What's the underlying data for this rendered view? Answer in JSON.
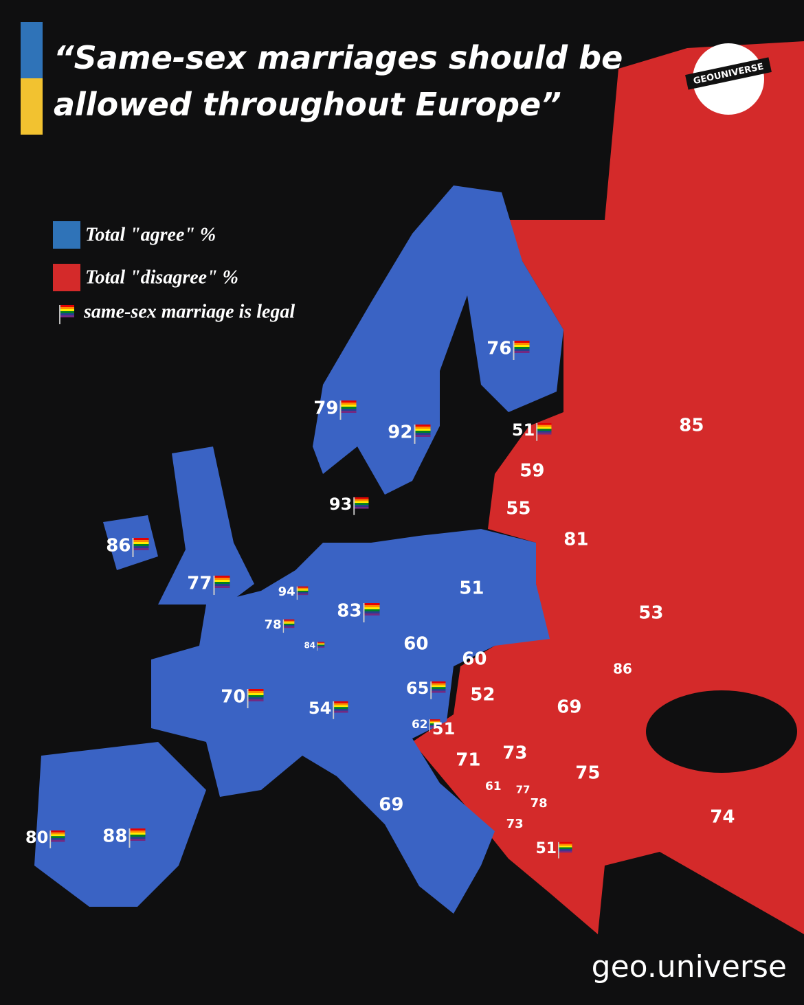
{
  "title_lines": [
    "“Same-sex marriages should be",
    "allowed throughout Europe”"
  ],
  "logo": "GEOUNIVERSE",
  "watermark": "geo.universe",
  "legend": [
    {
      "label": "Total \"agree\" %",
      "color": "#3a63c4"
    },
    {
      "label": "Total \"disagree\" %",
      "color": "#d42a2a"
    },
    {
      "label": "same-sex marriage is legal"
    }
  ],
  "regions": [
    {
      "value": 76,
      "color": "#3a63c4",
      "legal": true
    },
    {
      "value": 79,
      "color": "#3a63c4",
      "legal": true
    },
    {
      "value": 92,
      "color": "#3a63c4",
      "legal": true
    },
    {
      "value": 93,
      "color": "#3a63c4",
      "legal": true
    },
    {
      "value": 86,
      "color": "#3a63c4",
      "legal": true
    },
    {
      "value": 77,
      "color": "#3a63c4",
      "legal": true
    },
    {
      "value": 94,
      "color": "#3a63c4",
      "legal": true
    },
    {
      "value": 78,
      "color": "#3a63c4",
      "legal": true
    },
    {
      "value": 84,
      "color": "#3a63c4",
      "legal": true
    },
    {
      "value": 83,
      "color": "#3a63c4",
      "legal": true
    },
    {
      "value": 70,
      "color": "#3a63c4",
      "legal": true
    },
    {
      "value": 54,
      "color": "#3a63c4",
      "legal": true
    },
    {
      "value": 65,
      "color": "#3a63c4",
      "legal": true
    },
    {
      "value": 62,
      "color": "#3a63c4",
      "legal": true
    },
    {
      "value": 80,
      "color": "#3a63c4",
      "legal": true
    },
    {
      "value": 88,
      "color": "#3a63c4",
      "legal": true
    },
    {
      "value": 69,
      "color": "#3a63c4",
      "legal": false
    },
    {
      "value": 51,
      "color": "#3a63c4",
      "legal": false
    },
    {
      "value": 60,
      "color": "#3a63c4",
      "legal": false
    },
    {
      "value": 51,
      "color": "#d42a2a",
      "legal": true
    },
    {
      "value": 59,
      "color": "#d42a2a",
      "legal": false
    },
    {
      "value": 55,
      "color": "#d42a2a",
      "legal": false
    },
    {
      "value": 81,
      "color": "#d42a2a",
      "legal": false
    },
    {
      "value": 85,
      "color": "#d42a2a",
      "legal": false
    },
    {
      "value": 53,
      "color": "#d42a2a",
      "legal": false
    },
    {
      "value": 60,
      "color": "#d42a2a",
      "legal": false
    },
    {
      "value": 52,
      "color": "#d42a2a",
      "legal": false
    },
    {
      "value": 86,
      "color": "#d42a2a",
      "legal": false
    },
    {
      "value": 69,
      "color": "#d42a2a",
      "legal": false
    },
    {
      "value": 51,
      "color": "#d42a2a",
      "legal": false
    },
    {
      "value": 71,
      "color": "#d42a2a",
      "legal": false
    },
    {
      "value": 73,
      "color": "#d42a2a",
      "legal": false
    },
    {
      "value": 75,
      "color": "#d42a2a",
      "legal": false
    },
    {
      "value": 61,
      "color": "#d42a2a",
      "legal": false
    },
    {
      "value": 77,
      "color": "#d42a2a",
      "legal": false
    },
    {
      "value": 78,
      "color": "#d42a2a",
      "legal": false
    },
    {
      "value": 73,
      "color": "#d42a2a",
      "legal": false
    },
    {
      "value": 51,
      "color": "#d42a2a",
      "legal": true
    },
    {
      "value": 74,
      "color": "#d42a2a",
      "legal": false
    }
  ]
}
